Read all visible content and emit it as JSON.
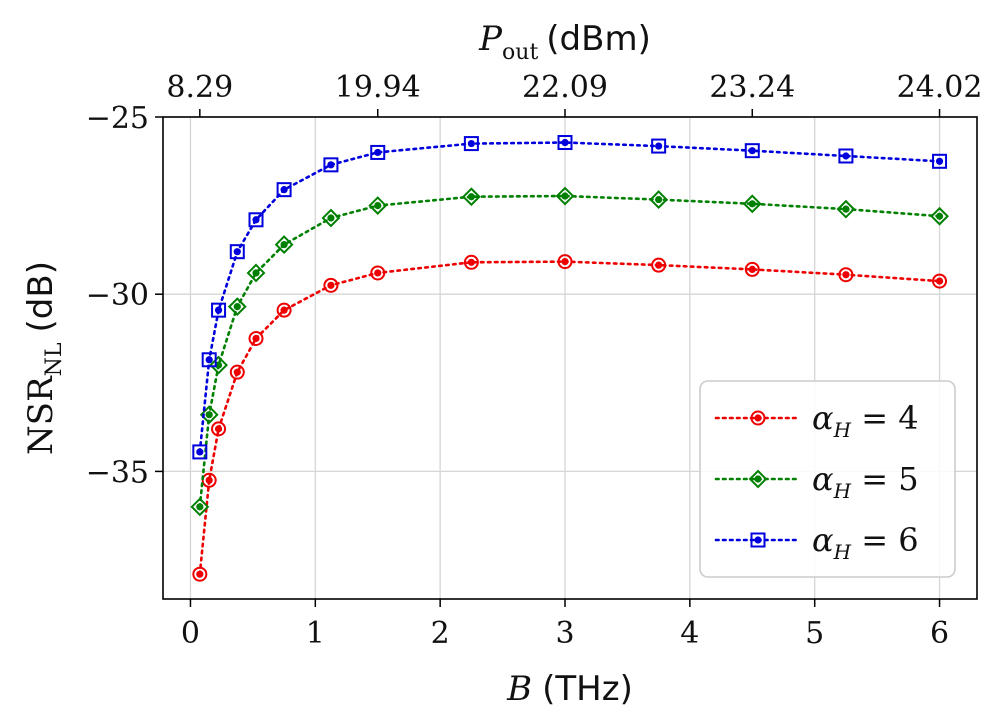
{
  "chart_data": {
    "type": "line",
    "title": "",
    "xlabel_var": "B",
    "xlabel_unit": "(THz)",
    "ylabel_main": "NSR",
    "ylabel_sub": "NL",
    "ylabel_unit": "(dB)",
    "top_label_var": "P",
    "top_label_sub": "out",
    "top_label_unit": "(dBm)",
    "xlim": [
      -0.22,
      6.3
    ],
    "ylim": [
      -38.6,
      -25
    ],
    "xticks": [
      0,
      1,
      2,
      3,
      4,
      5,
      6
    ],
    "xtick_labels": [
      "0",
      "1",
      "2",
      "3",
      "4",
      "5",
      "6"
    ],
    "yticks": [
      -35,
      -30,
      -25
    ],
    "ytick_labels": [
      "−35",
      "−30",
      "−25"
    ],
    "top_ticks": [
      0.075,
      1.5,
      3.0,
      4.5,
      6.0
    ],
    "top_tick_labels": [
      "8.29",
      "19.94",
      "22.09",
      "23.24",
      "24.02"
    ],
    "grid": true,
    "legend_position": "lower-right",
    "x": [
      0.075,
      0.15,
      0.225,
      0.375,
      0.525,
      0.75,
      1.125,
      1.5,
      2.25,
      3.0,
      3.75,
      4.5,
      5.25,
      6.0
    ],
    "series": [
      {
        "name": "α_H = 4",
        "legend_label": "αH = 4",
        "legend_var": "α",
        "legend_sub": "H",
        "legend_eq": " = 4",
        "color": "#ee0000",
        "marker": "circle",
        "values": [
          -37.9,
          -35.25,
          -33.8,
          -32.2,
          -31.25,
          -30.45,
          -29.75,
          -29.4,
          -29.1,
          -29.08,
          -29.18,
          -29.3,
          -29.45,
          -29.63
        ]
      },
      {
        "name": "α_H = 5",
        "legend_label": "αH = 5",
        "legend_var": "α",
        "legend_sub": "H",
        "legend_eq": " = 5",
        "color": "#008000",
        "marker": "diamond",
        "values": [
          -36.0,
          -33.4,
          -32.0,
          -30.35,
          -29.4,
          -28.6,
          -27.85,
          -27.5,
          -27.25,
          -27.23,
          -27.33,
          -27.45,
          -27.6,
          -27.8
        ]
      },
      {
        "name": "α_H = 6",
        "legend_label": "αH = 6",
        "legend_var": "α",
        "legend_sub": "H",
        "legend_eq": " = 6",
        "color": "#0000dd",
        "marker": "square",
        "values": [
          -34.45,
          -31.85,
          -30.45,
          -28.8,
          -27.9,
          -27.05,
          -26.35,
          -26.0,
          -25.75,
          -25.72,
          -25.82,
          -25.95,
          -26.1,
          -26.25
        ]
      }
    ]
  }
}
